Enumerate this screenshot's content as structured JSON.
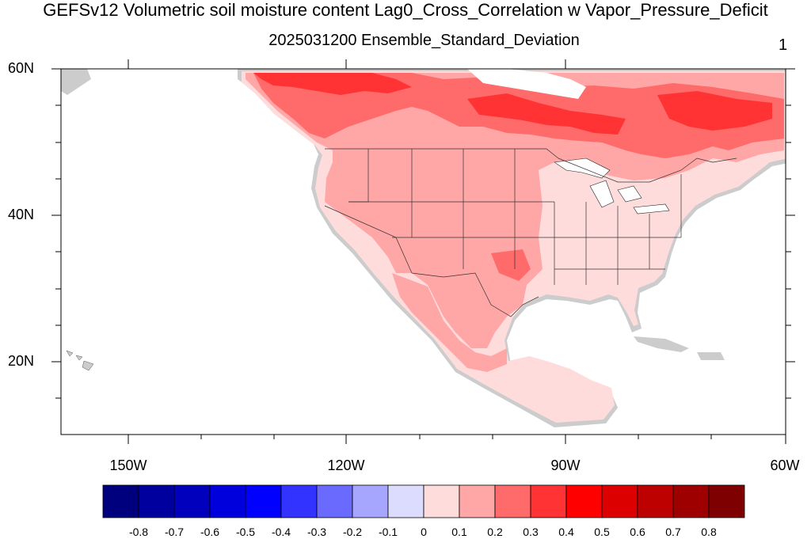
{
  "title": "GEFSv12 Volumetric soil moisture content Lag0_Cross_Correlation w Vapor_Pressure_Deficit",
  "subtitle": "2025031200 Ensemble_Standard_Deviation",
  "panel_number": "1",
  "lat_labels": [
    "60N",
    "40N",
    "20N"
  ],
  "lon_labels": [
    "150W",
    "120W",
    "90W",
    "60W"
  ],
  "colorbar": {
    "labels": [
      "-0.8",
      "-0.7",
      "-0.6",
      "-0.5",
      "-0.4",
      "-0.3",
      "-0.2",
      "-0.1",
      "0",
      "0.1",
      "0.2",
      "0.3",
      "0.4",
      "0.5",
      "0.6",
      "0.7",
      "0.8"
    ],
    "colors": [
      "#00007f",
      "#00009e",
      "#0000bd",
      "#0000dc",
      "#0000ff",
      "#3333ff",
      "#6a6aff",
      "#a6a6ff",
      "#dcdcff",
      "#ffdcdc",
      "#ffa6a6",
      "#ff6a6a",
      "#ff3333",
      "#ff0000",
      "#dc0000",
      "#bd0000",
      "#9e0000",
      "#7f0000"
    ]
  },
  "map": {
    "projection": "cylindrical-equidistant",
    "lon_range": [
      -160,
      -60
    ],
    "lat_range": [
      10,
      60
    ],
    "missing_color": "#cccccc"
  }
}
